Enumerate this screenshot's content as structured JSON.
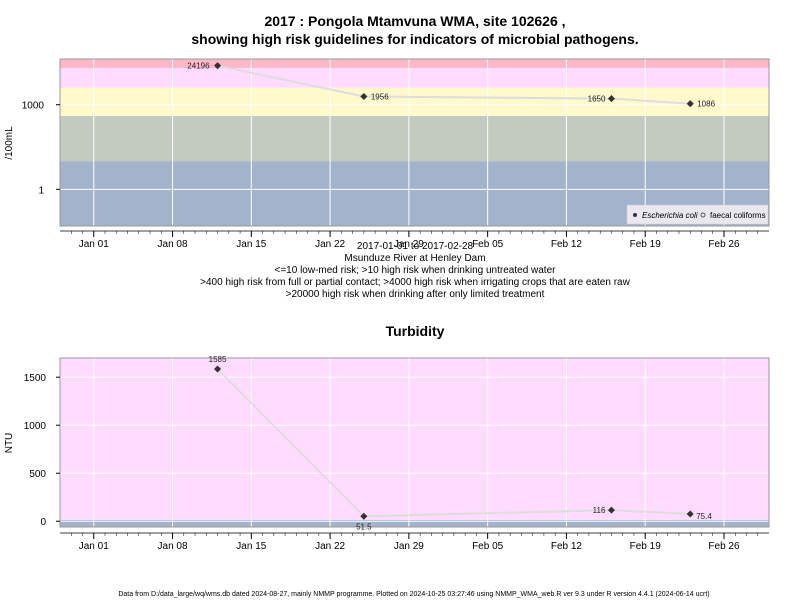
{
  "colors": {
    "band_low": "#a3b3cc",
    "band_mid": "#c3cbc0",
    "band_yellow": "#fff9cc",
    "band_pink": "#ffdcff",
    "band_red": "#ffb8c8",
    "line": "#dddddd",
    "point": "#333333"
  },
  "chart_data": [
    {
      "type": "line",
      "title_line1": "2017 : Pongola Mtamvuna WMA, site 102626 ,",
      "title_line2": "showing high risk guidelines for indicators of microbial pathogens.",
      "ylabel": "/100mL",
      "yscale": "log",
      "y_tick_labels": [
        "1",
        "1000"
      ],
      "x_tick_labels": [
        "Jan 01",
        "Jan 08",
        "Jan 15",
        "Jan 22",
        "Jan 29",
        "Feb 05",
        "Feb 12",
        "Feb 19",
        "Feb 26"
      ],
      "xlim": [
        "2016-12-29",
        "2017-03-02"
      ],
      "series": [
        {
          "name": "Escherichia coli",
          "x": [
            "2017-01-12",
            "2017-01-25",
            "2017-02-16",
            "2017-02-23"
          ],
          "y": [
            24196,
            1956,
            1650,
            1086
          ],
          "labels": [
            "24196",
            "1956",
            "1650",
            "1086"
          ]
        }
      ],
      "legend": [
        "Escherichia coli",
        "faecal coliforms"
      ],
      "legend_position": "bottom-right",
      "bands": [
        {
          "from": 0.01,
          "to": 10,
          "color": "band_low"
        },
        {
          "from": 10,
          "to": 400,
          "color": "band_mid"
        },
        {
          "from": 400,
          "to": 4000,
          "color": "band_yellow"
        },
        {
          "from": 4000,
          "to": 20000,
          "color": "band_pink"
        },
        {
          "from": 20000,
          "to": 100000,
          "color": "band_red"
        }
      ],
      "caption": [
        "2017-01-01 to 2017-02-28",
        "Msunduze River at Henley Dam",
        "<=10 low-med risk; >10 high risk when drinking untreated water",
        ">400 high risk from full or partial contact; >4000 high risk when irrigating crops that are eaten raw",
        ">20000 high risk when drinking after only limited treatment"
      ]
    },
    {
      "type": "line",
      "title": "Turbidity",
      "ylabel": "NTU",
      "y_tick_labels": [
        "0",
        "500",
        "1000",
        "1500"
      ],
      "ylim": [
        -60,
        1700
      ],
      "x_tick_labels": [
        "Jan 01",
        "Jan 08",
        "Jan 15",
        "Jan 22",
        "Jan 29",
        "Feb 05",
        "Feb 12",
        "Feb 19",
        "Feb 26"
      ],
      "xlim": [
        "2016-12-29",
        "2017-03-02"
      ],
      "series": [
        {
          "name": "",
          "x": [
            "2017-01-12",
            "2017-01-25",
            "2017-02-16",
            "2017-02-23"
          ],
          "y": [
            1585,
            51.5,
            116,
            75.4
          ],
          "labels": [
            "1585",
            "51.5",
            "116",
            "75.4"
          ]
        }
      ]
    }
  ],
  "footer": "Data from D:/data_large/wq/wms.db dated 2024-08-27, mainly NMMP programme. Plotted on 2024-10-25 03:27:46 using NMMP_WMA_web.R ver 9.3 under R version 4.4.1 (2024-06-14 ucrt)"
}
